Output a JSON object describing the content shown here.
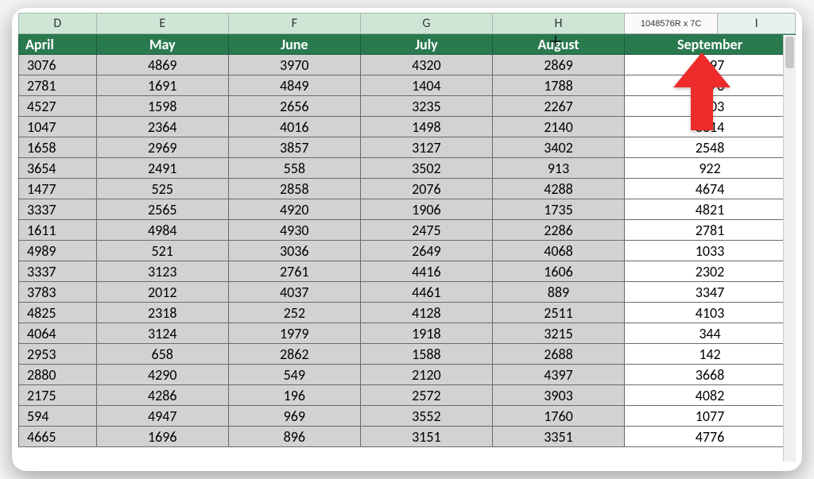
{
  "tooltip": "1048576R x 7C",
  "columnLetters": [
    "D",
    "E",
    "F",
    "G",
    "H",
    "",
    "I"
  ],
  "selectedCols": [
    true,
    true,
    true,
    true,
    true,
    false,
    false
  ],
  "monthHeaders": [
    "April",
    "May",
    "June",
    "July",
    "August",
    "September"
  ],
  "colors": {
    "headerBg": "#2a7a4f",
    "selectedCell": "#d2d2d2",
    "unselectedCell": "#ffffff",
    "colHdrSel": "#cfe6d7",
    "colHdr": "#e8f2ec",
    "arrow": "#ef2b2b"
  },
  "rows": [
    [
      3076,
      4869,
      3970,
      4320,
      2869,
      4097
    ],
    [
      2781,
      1691,
      4849,
      1404,
      1788,
      4276
    ],
    [
      4527,
      1598,
      2656,
      3235,
      2267,
      3603
    ],
    [
      1047,
      2364,
      4016,
      1498,
      2140,
      3314
    ],
    [
      1658,
      2969,
      3857,
      3127,
      3402,
      2548
    ],
    [
      3654,
      2491,
      558,
      3502,
      913,
      922
    ],
    [
      1477,
      525,
      2858,
      2076,
      4288,
      4674
    ],
    [
      3337,
      2565,
      4920,
      1906,
      1735,
      4821
    ],
    [
      1611,
      4984,
      4930,
      2475,
      2286,
      2781
    ],
    [
      4989,
      521,
      3036,
      2649,
      4068,
      1033
    ],
    [
      3337,
      3123,
      2761,
      4416,
      1606,
      2302
    ],
    [
      3783,
      2012,
      4037,
      4461,
      889,
      3347
    ],
    [
      4825,
      2318,
      252,
      4128,
      2511,
      4103
    ],
    [
      4064,
      3124,
      1979,
      1918,
      3215,
      344
    ],
    [
      2953,
      658,
      2862,
      1588,
      2688,
      142
    ],
    [
      2880,
      4290,
      549,
      2120,
      4397,
      3668
    ],
    [
      2175,
      4286,
      196,
      2572,
      3903,
      4082
    ],
    [
      594,
      4947,
      969,
      3552,
      1760,
      1077
    ],
    [
      4665,
      1696,
      896,
      3151,
      3351,
      4776
    ]
  ],
  "colWidths": [
    "10%",
    "17%",
    "17%",
    "17%",
    "17%",
    "12%",
    "10%"
  ]
}
